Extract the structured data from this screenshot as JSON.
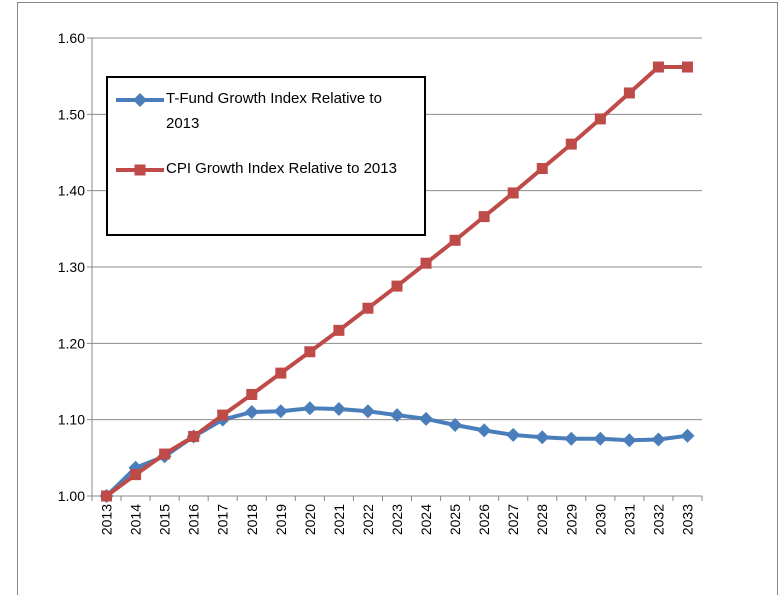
{
  "chart_data": {
    "type": "line",
    "categories": [
      "2013",
      "2014",
      "2015",
      "2016",
      "2017",
      "2018",
      "2019",
      "2020",
      "2021",
      "2022",
      "2023",
      "2024",
      "2025",
      "2026",
      "2027",
      "2028",
      "2029",
      "2030",
      "2031",
      "2032",
      "2033"
    ],
    "series": [
      {
        "name": "T-Fund Growth Index Relative to 2013",
        "color": "#4a7ebb",
        "marker": "diamond",
        "values": [
          1.0,
          1.037,
          1.052,
          1.078,
          1.1,
          1.11,
          1.111,
          1.115,
          1.114,
          1.111,
          1.106,
          1.101,
          1.093,
          1.086,
          1.08,
          1.077,
          1.075,
          1.075,
          1.073,
          1.074,
          1.079
        ]
      },
      {
        "name": "CPI Growth Index Relative to 2013",
        "color": "#be4b48",
        "marker": "square",
        "values": [
          1.0,
          1.028,
          1.055,
          1.078,
          1.106,
          1.133,
          1.161,
          1.189,
          1.217,
          1.246,
          1.275,
          1.305,
          1.335,
          1.366,
          1.397,
          1.429,
          1.461,
          1.494,
          1.528,
          1.562,
          1.562
        ]
      }
    ],
    "ylim": [
      1.0,
      1.6
    ],
    "yticks": [
      {
        "value": 1.0,
        "label": "1.00"
      },
      {
        "value": 1.1,
        "label": "1.10"
      },
      {
        "value": 1.2,
        "label": "1.20"
      },
      {
        "value": 1.3,
        "label": "1.30"
      },
      {
        "value": 1.4,
        "label": "1.40"
      },
      {
        "value": 1.5,
        "label": "1.50"
      },
      {
        "value": 1.6,
        "label": "1.60"
      }
    ],
    "grid": true,
    "legend": "upper-left"
  }
}
